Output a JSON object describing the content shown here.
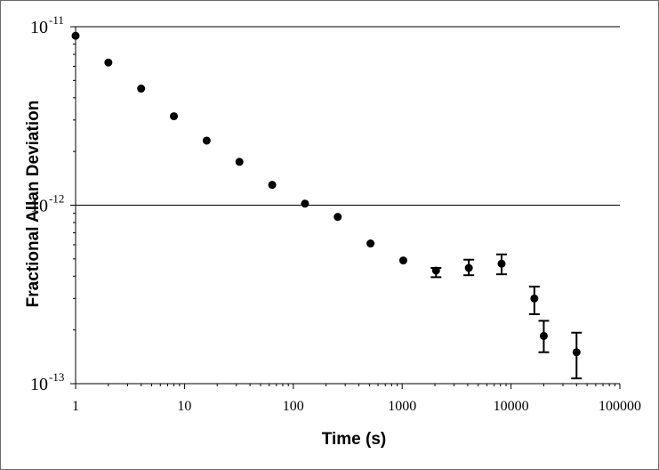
{
  "chart_data": {
    "type": "scatter",
    "title": "",
    "xlabel": "Time (s)",
    "ylabel": "Fractional Allan Deviation",
    "x_scale": "log",
    "y_scale": "log",
    "xlim": [
      1,
      100000
    ],
    "ylim": [
      1e-13,
      1e-11
    ],
    "x_ticks": [
      {
        "value": 1,
        "label": "1"
      },
      {
        "value": 10,
        "label": "10"
      },
      {
        "value": 100,
        "label": "100"
      },
      {
        "value": 1000,
        "label": "1000"
      },
      {
        "value": 10000,
        "label": "10000"
      },
      {
        "value": 100000,
        "label": "100000"
      }
    ],
    "y_ticks": [
      {
        "value": 1e-11,
        "base": "10",
        "exp": "-11"
      },
      {
        "value": 1e-12,
        "base": "10",
        "exp": "-12"
      },
      {
        "value": 1e-13,
        "base": "10",
        "exp": "-13"
      }
    ],
    "grid": "horizontal major lines",
    "legend": "none",
    "marker_color": "#000000",
    "points": [
      {
        "x": 1,
        "y": 8.9e-12
      },
      {
        "x": 2,
        "y": 6.3e-12
      },
      {
        "x": 4,
        "y": 4.5e-12
      },
      {
        "x": 8,
        "y": 3.15e-12
      },
      {
        "x": 16,
        "y": 2.3e-12
      },
      {
        "x": 32,
        "y": 1.75e-12
      },
      {
        "x": 64,
        "y": 1.3e-12
      },
      {
        "x": 128,
        "y": 1.02e-12
      },
      {
        "x": 256,
        "y": 8.6e-13
      },
      {
        "x": 512,
        "y": 6.1e-13
      },
      {
        "x": 1024,
        "y": 4.9e-13
      },
      {
        "x": 2048,
        "y": 4.3e-13,
        "err_low": 3.95e-13,
        "err_high": 4.45e-13
      },
      {
        "x": 4096,
        "y": 4.45e-13,
        "err_low": 4.05e-13,
        "err_high": 4.95e-13
      },
      {
        "x": 8192,
        "y": 4.7e-13,
        "err_low": 4.1e-13,
        "err_high": 5.3e-13
      },
      {
        "x": 16384,
        "y": 3e-13,
        "err_low": 2.45e-13,
        "err_high": 3.5e-13
      },
      {
        "x": 20000,
        "y": 1.85e-13,
        "err_low": 1.5e-13,
        "err_high": 2.25e-13
      },
      {
        "x": 40000,
        "y": 1.5e-13,
        "err_low": 1.07e-13,
        "err_high": 1.93e-13
      }
    ]
  }
}
